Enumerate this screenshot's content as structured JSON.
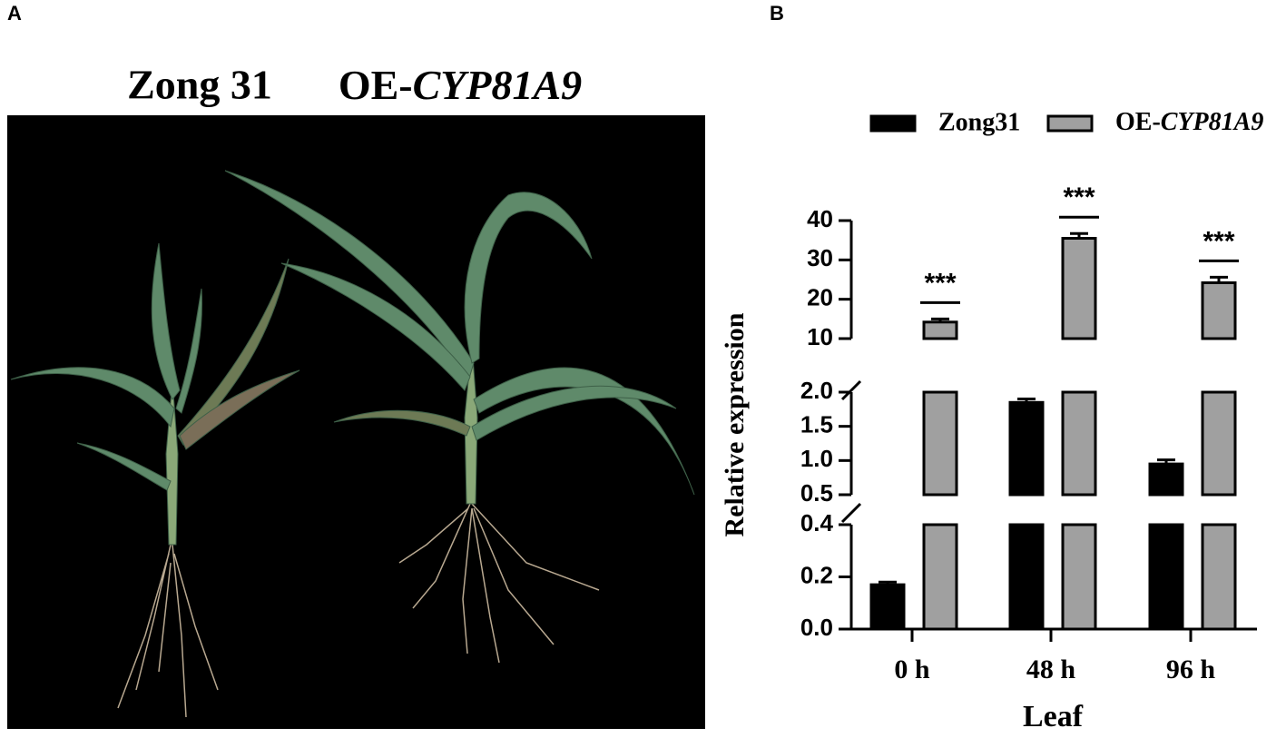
{
  "panels": {
    "a": {
      "label": "A",
      "titles": [
        "Zong 31",
        "OE-CYP81A9"
      ]
    },
    "b": {
      "label": "B"
    }
  },
  "chart_data": {
    "type": "bar",
    "categories": [
      "0 h",
      "48 h",
      "96 h"
    ],
    "xlabel": "Leaf",
    "ylabel": "Relative expression",
    "series": [
      {
        "name": "Zong31",
        "color": "#000000",
        "values": [
          0.17,
          1.85,
          0.95
        ],
        "errors": [
          0.01,
          0.05,
          0.06
        ]
      },
      {
        "name": "OE-CYP81A9",
        "color": "#a0a0a0",
        "values": [
          14.2,
          35.5,
          24.2
        ],
        "errors": [
          0.8,
          1.2,
          1.4
        ]
      }
    ],
    "significance": [
      "***",
      "***",
      "***"
    ],
    "y_segments": [
      {
        "ylim": [
          0,
          0.4
        ],
        "yticks": [
          {
            "value": 0,
            "label": "0.0"
          },
          {
            "value": 0.2,
            "label": "0.2"
          },
          {
            "value": 0.4,
            "label": "0.4"
          }
        ]
      },
      {
        "ylim": [
          0.5,
          2.0
        ],
        "yticks": [
          {
            "value": 0.5,
            "label": "0.5"
          },
          {
            "value": 1.0,
            "label": "1.0"
          },
          {
            "value": 1.5,
            "label": "1.5"
          },
          {
            "value": 2.0,
            "label": "2.0"
          }
        ]
      },
      {
        "ylim": [
          10,
          40
        ],
        "yticks": [
          10,
          20,
          30,
          40
        ]
      }
    ]
  }
}
